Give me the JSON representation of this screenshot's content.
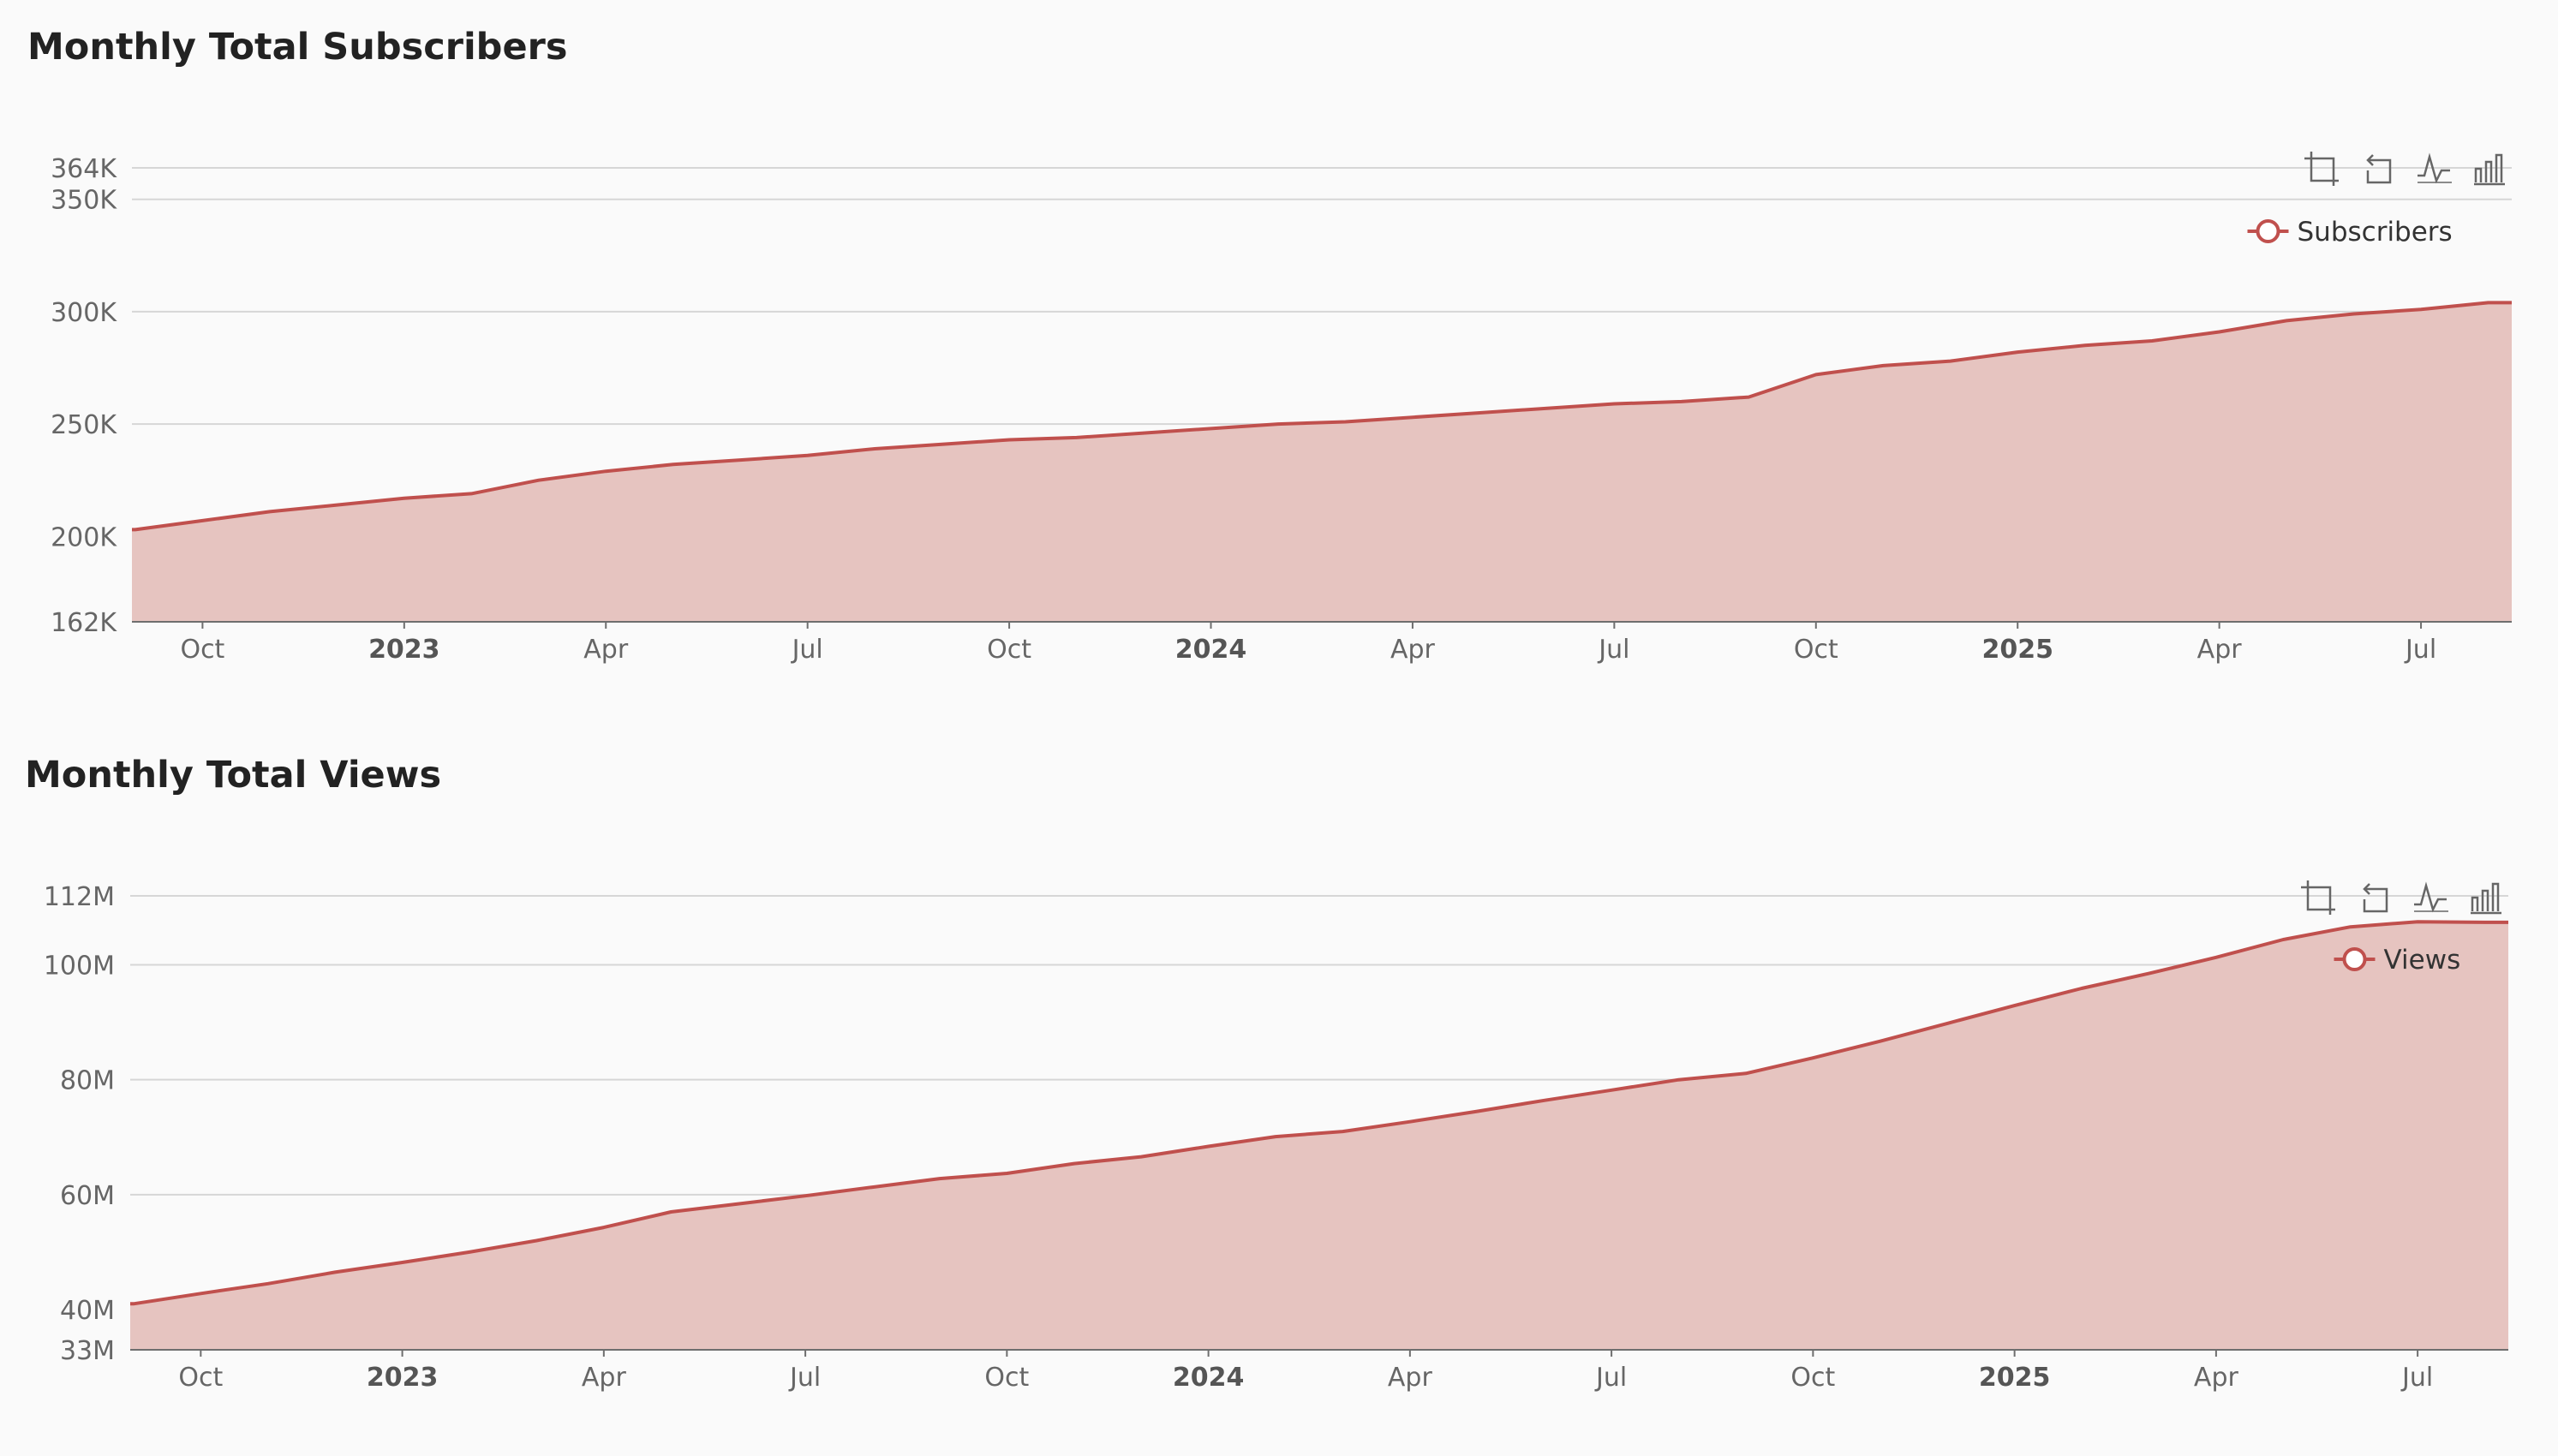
{
  "colors": {
    "accent": "#c0504d",
    "fill": "#e6c4c0",
    "grid": "#d6d6d6",
    "axis": "#6e6e6e",
    "text": "#666666"
  },
  "toolbar": {
    "icons": [
      "data-zoom-icon",
      "zoom-reset-icon",
      "line-chart-icon",
      "bar-chart-icon"
    ]
  },
  "chart_data": [
    {
      "type": "area",
      "title": "Monthly Total Subscribers",
      "xlabel": "",
      "ylabel": "",
      "x": [
        "2022-09",
        "2022-10",
        "2022-11",
        "2022-12",
        "2023-01",
        "2023-02",
        "2023-03",
        "2023-04",
        "2023-05",
        "2023-06",
        "2023-07",
        "2023-08",
        "2023-09",
        "2023-10",
        "2023-11",
        "2023-12",
        "2024-01",
        "2024-02",
        "2024-03",
        "2024-04",
        "2024-05",
        "2024-06",
        "2024-07",
        "2024-08",
        "2024-09",
        "2024-10",
        "2024-11",
        "2024-12",
        "2025-01",
        "2025-02",
        "2025-03",
        "2025-04",
        "2025-05",
        "2025-06",
        "2025-07",
        "2025-08"
      ],
      "series": [
        {
          "name": "Subscribers",
          "values": [
            203000,
            207000,
            211000,
            214000,
            217000,
            219000,
            225000,
            229000,
            232000,
            234000,
            236000,
            239000,
            241000,
            243000,
            244000,
            246000,
            248000,
            250000,
            251000,
            253000,
            255000,
            257000,
            259000,
            260000,
            262000,
            272000,
            276000,
            278000,
            282000,
            285000,
            287000,
            291000,
            296000,
            299000,
            301000,
            304000
          ]
        }
      ],
      "ylim": [
        162000,
        364000
      ],
      "yticks": [
        162000,
        200000,
        250000,
        300000,
        350000,
        364000
      ],
      "ytick_labels": [
        "162K",
        "200K",
        "250K",
        "300K",
        "350K",
        "364K"
      ],
      "xtick_labels": [
        {
          "at": "2022-10",
          "label": "Oct",
          "bold": false
        },
        {
          "at": "2023-01",
          "label": "2023",
          "bold": true
        },
        {
          "at": "2023-04",
          "label": "Apr",
          "bold": false
        },
        {
          "at": "2023-07",
          "label": "Jul",
          "bold": false
        },
        {
          "at": "2023-10",
          "label": "Oct",
          "bold": false
        },
        {
          "at": "2024-01",
          "label": "2024",
          "bold": true
        },
        {
          "at": "2024-04",
          "label": "Apr",
          "bold": false
        },
        {
          "at": "2024-07",
          "label": "Jul",
          "bold": false
        },
        {
          "at": "2024-10",
          "label": "Oct",
          "bold": false
        },
        {
          "at": "2025-01",
          "label": "2025",
          "bold": true
        },
        {
          "at": "2025-04",
          "label": "Apr",
          "bold": false
        },
        {
          "at": "2025-07",
          "label": "Jul",
          "bold": false
        }
      ],
      "x_start": "2022-09",
      "x_end": "2025-08",
      "grid": true,
      "legend": "top-right"
    },
    {
      "type": "area",
      "title": "Monthly Total Views",
      "xlabel": "",
      "ylabel": "",
      "x": [
        "2022-09",
        "2022-10",
        "2022-11",
        "2022-12",
        "2023-01",
        "2023-02",
        "2023-03",
        "2023-04",
        "2023-05",
        "2023-06",
        "2023-07",
        "2023-08",
        "2023-09",
        "2023-10",
        "2023-11",
        "2023-12",
        "2024-01",
        "2024-02",
        "2024-03",
        "2024-04",
        "2024-05",
        "2024-06",
        "2024-07",
        "2024-08",
        "2024-09",
        "2024-10",
        "2024-11",
        "2024-12",
        "2025-01",
        "2025-02",
        "2025-03",
        "2025-04",
        "2025-05",
        "2025-06",
        "2025-07",
        "2025-08"
      ],
      "series": [
        {
          "name": "Views",
          "values": [
            41000000,
            42800000,
            44500000,
            46500000,
            48200000,
            50000000,
            52000000,
            54300000,
            57000000,
            58400000,
            59800000,
            61300000,
            62800000,
            63700000,
            65400000,
            66600000,
            68400000,
            70100000,
            71000000,
            72700000,
            74500000,
            76400000,
            78200000,
            80000000,
            81100000,
            83800000,
            86700000,
            89800000,
            92900000,
            95900000,
            98500000,
            101300000,
            104400000,
            106600000,
            107500000,
            107400000
          ]
        }
      ],
      "ylim": [
        33000000,
        112000000
      ],
      "yticks": [
        33000000,
        40000000,
        60000000,
        80000000,
        100000000,
        112000000
      ],
      "ytick_labels": [
        "33M",
        "40M",
        "60M",
        "80M",
        "100M",
        "112M"
      ],
      "xtick_labels": [
        {
          "at": "2022-10",
          "label": "Oct",
          "bold": false
        },
        {
          "at": "2023-01",
          "label": "2023",
          "bold": true
        },
        {
          "at": "2023-04",
          "label": "Apr",
          "bold": false
        },
        {
          "at": "2023-07",
          "label": "Jul",
          "bold": false
        },
        {
          "at": "2023-10",
          "label": "Oct",
          "bold": false
        },
        {
          "at": "2024-01",
          "label": "2024",
          "bold": true
        },
        {
          "at": "2024-04",
          "label": "Apr",
          "bold": false
        },
        {
          "at": "2024-07",
          "label": "Jul",
          "bold": false
        },
        {
          "at": "2024-10",
          "label": "Oct",
          "bold": false
        },
        {
          "at": "2025-01",
          "label": "2025",
          "bold": true
        },
        {
          "at": "2025-04",
          "label": "Apr",
          "bold": false
        },
        {
          "at": "2025-07",
          "label": "Jul",
          "bold": false
        }
      ],
      "x_start": "2022-09",
      "x_end": "2025-08",
      "grid": true,
      "legend": "top-right"
    }
  ]
}
